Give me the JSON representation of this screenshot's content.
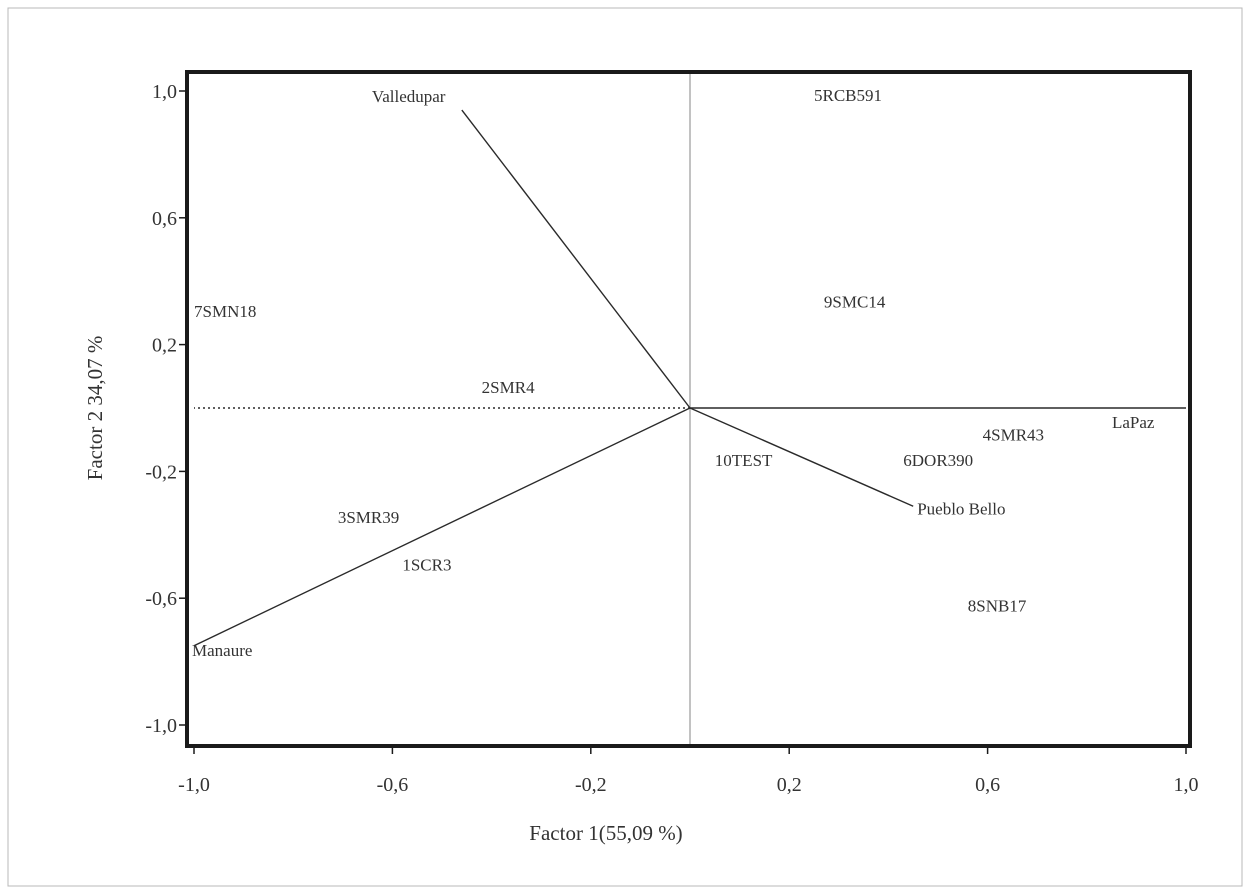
{
  "chart_data": {
    "type": "scatter",
    "title": "",
    "xlabel": "Factor 1(55,09 %)",
    "ylabel": "Factor 2 34,07 %",
    "xlim": [
      -1.0,
      1.0
    ],
    "ylim": [
      -1.05,
      1.05
    ],
    "grid": false,
    "x_ticks": [
      {
        "value": -1.0,
        "label": "-1,0"
      },
      {
        "value": -0.6,
        "label": "-0,6"
      },
      {
        "value": -0.2,
        "label": "-0,2"
      },
      {
        "value": 0.2,
        "label": "0,2"
      },
      {
        "value": 0.6,
        "label": "0,6"
      },
      {
        "value": 1.0,
        "label": "1,0"
      }
    ],
    "y_ticks": [
      {
        "value": 1.0,
        "label": "1,0"
      },
      {
        "value": 0.6,
        "label": "0,6"
      },
      {
        "value": 0.2,
        "label": "0,2"
      },
      {
        "value": -0.2,
        "label": "-0,2"
      },
      {
        "value": -0.6,
        "label": "-0,6"
      },
      {
        "value": -1.0,
        "label": "-1,0"
      }
    ],
    "vectors": [
      {
        "name": "Valledupar",
        "x": -0.46,
        "y": 0.94,
        "style": "solid"
      },
      {
        "name": "LaPaz",
        "x": 1.0,
        "y": 0.0,
        "style": "solid"
      },
      {
        "name": "Pueblo Bello",
        "x": 0.45,
        "y": -0.31,
        "style": "solid"
      },
      {
        "name": "Manaure",
        "x": -1.0,
        "y": -0.75,
        "style": "solid"
      },
      {
        "name": "",
        "x": -1.0,
        "y": 0.0,
        "style": "dotted"
      }
    ],
    "points": [
      {
        "label": "5RCB591",
        "x": 0.25,
        "y": 0.98
      },
      {
        "label": "7SMN18",
        "x": -1.0,
        "y": 0.3
      },
      {
        "label": "9SMC14",
        "x": 0.27,
        "y": 0.33
      },
      {
        "label": "2SMR4",
        "x": -0.42,
        "y": 0.06
      },
      {
        "label": "4SMR43",
        "x": 0.59,
        "y": -0.09
      },
      {
        "label": "6DOR390",
        "x": 0.43,
        "y": -0.17
      },
      {
        "label": "10TEST",
        "x": 0.05,
        "y": -0.17
      },
      {
        "label": "3SMR39",
        "x": -0.71,
        "y": -0.35
      },
      {
        "label": "1SCR3",
        "x": -0.58,
        "y": -0.5
      },
      {
        "label": "8SNB17",
        "x": 0.56,
        "y": -0.63
      }
    ]
  }
}
